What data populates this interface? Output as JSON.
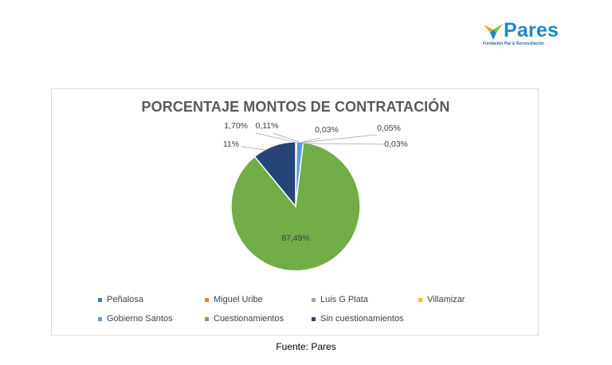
{
  "brand": {
    "name": "Pares",
    "tagline": "Fundación Paz & Reconciliación"
  },
  "chart_data": {
    "type": "pie",
    "title": "PORCENTAJE MONTOS DE CONTRATACIÓN",
    "categories": [
      "Peñalosa",
      "Miguel Uribe",
      "Luis G Plata",
      "Villamizar",
      "Gobierno Santos",
      "Cuestionamientos",
      "Sin cuestionamientos"
    ],
    "values": [
      0.03,
      0.05,
      0.03,
      0.11,
      1.7,
      87.49,
      11
    ],
    "data_labels": [
      "0,03%",
      "0,05%",
      "0,03%",
      "0,11%",
      "1,70%",
      "87,49%",
      "11%"
    ],
    "colors": [
      "#4472c4",
      "#ed7d31",
      "#a5a5a5",
      "#ffc000",
      "#5b9bd5",
      "#70ad47",
      "#264478"
    ],
    "legend_position": "bottom"
  },
  "source": "Fuente: Pares"
}
